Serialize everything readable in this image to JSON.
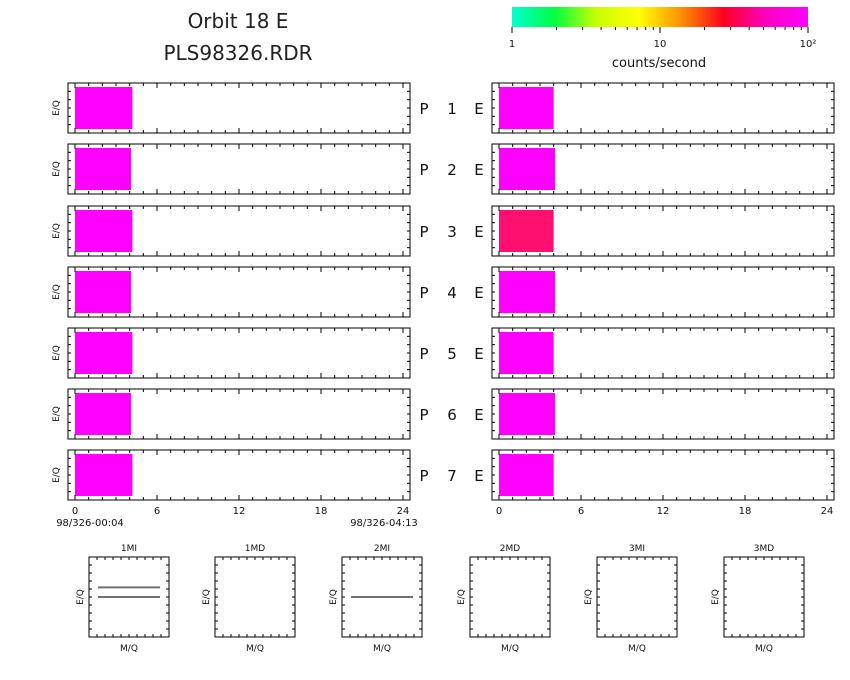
{
  "header": {
    "title_line1": "Orbit  18  E",
    "title_line2": "PLS98326.RDR"
  },
  "colorbar": {
    "label": "counts/second",
    "tick_labels": [
      "1",
      "10",
      "10²"
    ],
    "tick_values": [
      1,
      10,
      100
    ],
    "scale": "log",
    "range": [
      1,
      100
    ],
    "colors": [
      "#00ffd0",
      "#00ff40",
      "#c8ff00",
      "#ffff00",
      "#ff9000",
      "#ff0020",
      "#ff00c0",
      "#ff00ff"
    ]
  },
  "panels": {
    "y_axis_label": "E/Q",
    "row_labels": [
      "P  1  E",
      "P  2  E",
      "P  3  E",
      "P  4  E",
      "P  5  E",
      "P  6  E",
      "P  7  E"
    ],
    "left_time_labels": {
      "start": "98/326-00:04",
      "end": "98/326-04:13"
    }
  },
  "chart_data": [
    {
      "type": "heatmap",
      "name": "left-column",
      "x": {
        "ticks": [
          0,
          6,
          12,
          18,
          24
        ],
        "range": [
          0,
          24
        ]
      },
      "y_label": "E/Q",
      "rows": [
        {
          "label": "P  1  E",
          "x_end": 4.2,
          "color": "#ff00ff"
        },
        {
          "label": "P  2  E",
          "x_end": 4.1,
          "color": "#ff00ff"
        },
        {
          "label": "P  3  E",
          "x_end": 4.2,
          "color": "#ff00ff"
        },
        {
          "label": "P  4  E",
          "x_end": 4.1,
          "color": "#ff00ff"
        },
        {
          "label": "P  5  E",
          "x_end": 4.2,
          "color": "#ff00ff"
        },
        {
          "label": "P  6  E",
          "x_end": 4.1,
          "color": "#ff00ff"
        },
        {
          "label": "P  7  E",
          "x_end": 4.2,
          "color": "#ff00ff"
        }
      ]
    },
    {
      "type": "heatmap",
      "name": "right-column",
      "x": {
        "ticks": [
          0,
          6,
          12,
          18,
          24
        ],
        "range": [
          0,
          24
        ]
      },
      "rows": [
        {
          "label": "P  1  E",
          "x_end": 4.0,
          "color": "#ff00ff"
        },
        {
          "label": "P  2  E",
          "x_end": 4.1,
          "color": "#ff00ff"
        },
        {
          "label": "P  3  E",
          "x_end": 4.0,
          "color": "#ff1070"
        },
        {
          "label": "P  4  E",
          "x_end": 4.1,
          "color": "#ff00ff"
        },
        {
          "label": "P  5  E",
          "x_end": 4.0,
          "color": "#ff00ff"
        },
        {
          "label": "P  6  E",
          "x_end": 4.1,
          "color": "#ff00ff"
        },
        {
          "label": "P  7  E",
          "x_end": 4.0,
          "color": "#ff00ff"
        }
      ]
    },
    {
      "type": "line",
      "name": "mass-spectra",
      "xlabel": "M/Q",
      "ylabel": "E/Q",
      "panels": [
        {
          "title": "1MI",
          "lines_y": [
            0.62,
            0.5
          ]
        },
        {
          "title": "1MD",
          "lines_y": []
        },
        {
          "title": "2MI",
          "lines_y": [
            0.5
          ]
        },
        {
          "title": "2MD",
          "lines_y": []
        },
        {
          "title": "3MI",
          "lines_y": []
        },
        {
          "title": "3MD",
          "lines_y": []
        }
      ]
    }
  ]
}
